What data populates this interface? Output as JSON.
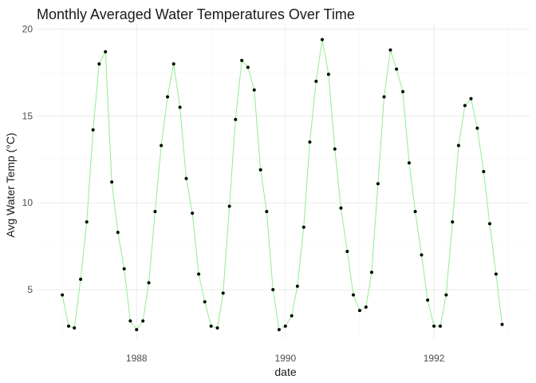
{
  "chart_data": {
    "type": "line",
    "title": "Monthly Averaged Water Temperatures Over Time",
    "xlabel": "date",
    "ylabel": "Avg Water Temp (°C)",
    "x_ticks": [
      {
        "value": "1988-01-01",
        "label": "1988"
      },
      {
        "value": "1990-01-01",
        "label": "1990"
      },
      {
        "value": "1992-01-01",
        "label": "1992"
      }
    ],
    "y_ticks": [
      {
        "value": 5,
        "label": "5"
      },
      {
        "value": 10,
        "label": "10"
      },
      {
        "value": 15,
        "label": "15"
      },
      {
        "value": 20,
        "label": "20"
      }
    ],
    "xlim": [
      "1986-09-01",
      "1993-04-15"
    ],
    "ylim": [
      2.2,
      20.3
    ],
    "grid": true,
    "line_color": "#90ee90",
    "point_color": "#000000",
    "series": [
      {
        "x": [
          "1987-01-01",
          "1987-02-01",
          "1987-03-01",
          "1987-04-01",
          "1987-05-01",
          "1987-06-01",
          "1987-07-01",
          "1987-08-01",
          "1987-09-01",
          "1987-10-01",
          "1987-11-01",
          "1987-12-01",
          "1988-01-01",
          "1988-02-01",
          "1988-03-01",
          "1988-04-01",
          "1988-05-01",
          "1988-06-01",
          "1988-07-01",
          "1988-08-01",
          "1988-09-01",
          "1988-10-01",
          "1988-11-01",
          "1988-12-01",
          "1989-01-01",
          "1989-02-01",
          "1989-03-01",
          "1989-04-01",
          "1989-05-01",
          "1989-06-01",
          "1989-07-01",
          "1989-08-01",
          "1989-09-01",
          "1989-10-01",
          "1989-11-01",
          "1989-12-01",
          "1990-01-01",
          "1990-02-01",
          "1990-03-01",
          "1990-04-01",
          "1990-05-01",
          "1990-06-01",
          "1990-07-01",
          "1990-08-01",
          "1990-09-01",
          "1990-10-01",
          "1990-11-01",
          "1990-12-01",
          "1991-01-01",
          "1991-02-01",
          "1991-03-01",
          "1991-04-01",
          "1991-05-01",
          "1991-06-01",
          "1991-07-01",
          "1991-08-01",
          "1991-09-01",
          "1991-10-01",
          "1991-11-01",
          "1991-12-01",
          "1992-01-01",
          "1992-02-01",
          "1992-03-01",
          "1992-04-01",
          "1992-05-01",
          "1992-06-01",
          "1992-07-01",
          "1992-08-01",
          "1992-09-01",
          "1992-10-01",
          "1992-11-01",
          "1992-12-01"
        ],
        "values": [
          4.7,
          2.9,
          2.8,
          5.6,
          8.9,
          14.2,
          18.0,
          18.7,
          11.2,
          8.3,
          6.2,
          3.2,
          2.7,
          3.2,
          5.4,
          9.5,
          13.3,
          16.1,
          18.0,
          15.5,
          11.4,
          9.4,
          5.9,
          4.3,
          2.9,
          2.8,
          4.8,
          9.8,
          14.8,
          18.2,
          17.8,
          16.5,
          11.9,
          9.5,
          5.0,
          2.7,
          2.9,
          3.5,
          5.2,
          8.6,
          13.5,
          17.0,
          19.4,
          17.4,
          13.1,
          9.7,
          7.2,
          4.7,
          3.8,
          4.0,
          6.0,
          11.1,
          16.1,
          18.8,
          17.7,
          16.4,
          12.3,
          9.5,
          7.0,
          4.4,
          2.9,
          2.9,
          4.7,
          8.9,
          13.3,
          15.6,
          16.0,
          14.3,
          11.8,
          8.8,
          5.9,
          3.0
        ]
      }
    ]
  }
}
